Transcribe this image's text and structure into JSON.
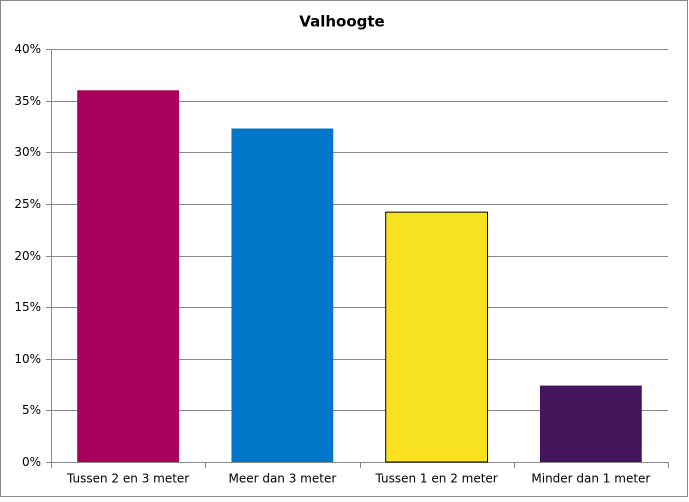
{
  "chart_data": {
    "type": "bar",
    "title": "Valhoogte",
    "categories": [
      "Tussen 2 en 3 meter",
      "Meer dan 3 meter",
      "Tussen 1 en 2 meter",
      "Minder dan 1 meter"
    ],
    "values": [
      36,
      32.3,
      24.2,
      7.4
    ],
    "colors": [
      "#a8005c",
      "#0077c8",
      "#f8e11e",
      "#45145a"
    ],
    "ylim": [
      0,
      40
    ],
    "yticks": [
      {
        "value": 0,
        "label": "0%"
      },
      {
        "value": 5,
        "label": "5%"
      },
      {
        "value": 10,
        "label": "10%"
      },
      {
        "value": 15,
        "label": "15%"
      },
      {
        "value": 20,
        "label": "20%"
      },
      {
        "value": 25,
        "label": "25%"
      },
      {
        "value": 30,
        "label": "30%"
      },
      {
        "value": 35,
        "label": "35%"
      },
      {
        "value": 40,
        "label": "40%"
      }
    ],
    "grid": true
  }
}
